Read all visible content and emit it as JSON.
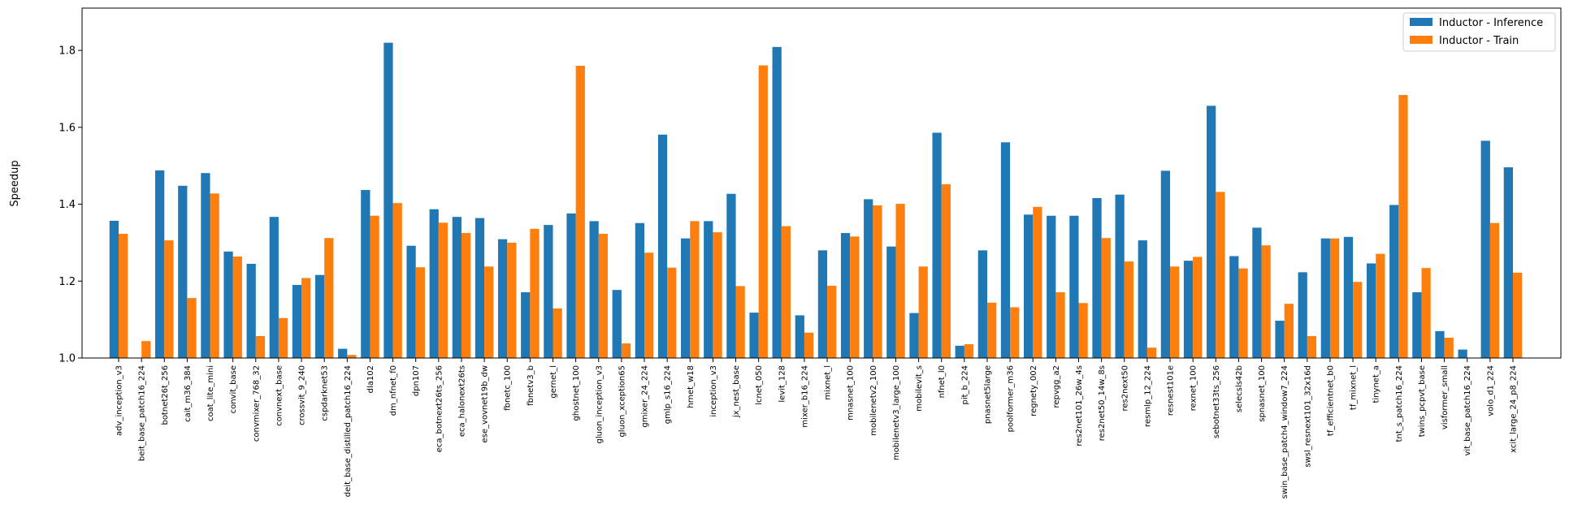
{
  "chart_data": {
    "type": "bar",
    "ylabel": "Speedup",
    "xlabel": "",
    "ylim": [
      1.0,
      1.91
    ],
    "yticks": [
      "1.0",
      "1.2",
      "1.4",
      "1.6",
      "1.8"
    ],
    "legend_position": "top-right",
    "grid": false,
    "colors": {
      "inference": "#1f77b4",
      "train": "#ff7f0e"
    },
    "categories": [
      "adv_inception_v3",
      "beit_base_patch16_224",
      "botnet26t_256",
      "cait_m36_384",
      "coat_lite_mini",
      "convit_base",
      "convmixer_768_32",
      "convnext_base",
      "crossvit_9_240",
      "cspdarknet53",
      "deit_base_distilled_patch16_224",
      "dla102",
      "dm_nfnet_f0",
      "dpn107",
      "eca_botnext26ts_256",
      "eca_halonext26ts",
      "ese_vovnet19b_dw",
      "fbnetc_100",
      "fbnetv3_b",
      "gernet_l",
      "ghostnet_100",
      "gluon_inception_v3",
      "gluon_xception65",
      "gmixer_24_224",
      "gmlp_s16_224",
      "hrnet_w18",
      "inception_v3",
      "jx_nest_base",
      "lcnet_050",
      "levit_128",
      "mixer_b16_224",
      "mixnet_l",
      "mnasnet_100",
      "mobilenetv2_100",
      "mobilenetv3_large_100",
      "mobilevit_s",
      "nfnet_l0",
      "pit_b_224",
      "pnasnet5large",
      "poolformer_m36",
      "regnety_002",
      "repvgg_a2",
      "res2net101_26w_4s",
      "res2net50_14w_8s",
      "res2next50",
      "resmlp_12_224",
      "resnest101e",
      "rexnet_100",
      "sebotnet33ts_256",
      "selecsls42b",
      "spnasnet_100",
      "swin_base_patch4_window7_224",
      "swsl_resnext101_32x16d",
      "tf_efficientnet_b0",
      "tf_mixnet_l",
      "tinynet_a",
      "tnt_s_patch16_224",
      "twins_pcpvt_base",
      "visformer_small",
      "vit_base_patch16_224",
      "volo_d1_224",
      "xcit_large_24_p8_224"
    ],
    "series": [
      {
        "name": "Inductor - Inference",
        "values": [
          1.357,
          1.0,
          1.488,
          1.448,
          1.481,
          1.277,
          1.245,
          1.367,
          1.19,
          1.216,
          1.024,
          1.437,
          1.82,
          1.292,
          1.387,
          1.367,
          1.364,
          1.309,
          1.171,
          1.346,
          1.376,
          1.356,
          1.177,
          1.351,
          1.581,
          1.311,
          1.356,
          1.427,
          1.118,
          1.809,
          1.111,
          1.28,
          1.325,
          1.413,
          1.29,
          1.117,
          1.586,
          1.032,
          1.28,
          1.561,
          1.373,
          1.37,
          1.37,
          1.416,
          1.425,
          1.306,
          1.487,
          1.253,
          1.656,
          1.265,
          1.339,
          1.097,
          1.223,
          1.311,
          1.315,
          1.246,
          1.398,
          1.171,
          1.07,
          1.022,
          1.565,
          1.496
        ]
      },
      {
        "name": "Inductor - Train",
        "values": [
          1.323,
          1.044,
          1.306,
          1.156,
          1.428,
          1.264,
          1.057,
          1.104,
          1.208,
          1.312,
          1.008,
          1.37,
          1.403,
          1.236,
          1.352,
          1.325,
          1.238,
          1.3,
          1.336,
          1.129,
          1.76,
          1.323,
          1.038,
          1.274,
          1.235,
          1.356,
          1.327,
          1.187,
          1.761,
          1.343,
          1.066,
          1.188,
          1.316,
          1.397,
          1.401,
          1.238,
          1.452,
          1.036,
          1.144,
          1.132,
          1.393,
          1.171,
          1.143,
          1.312,
          1.251,
          1.027,
          1.238,
          1.263,
          1.432,
          1.233,
          1.293,
          1.141,
          1.057,
          1.311,
          1.198,
          1.271,
          1.684,
          1.234,
          1.053,
          1.0,
          1.351,
          1.222
        ]
      }
    ]
  }
}
